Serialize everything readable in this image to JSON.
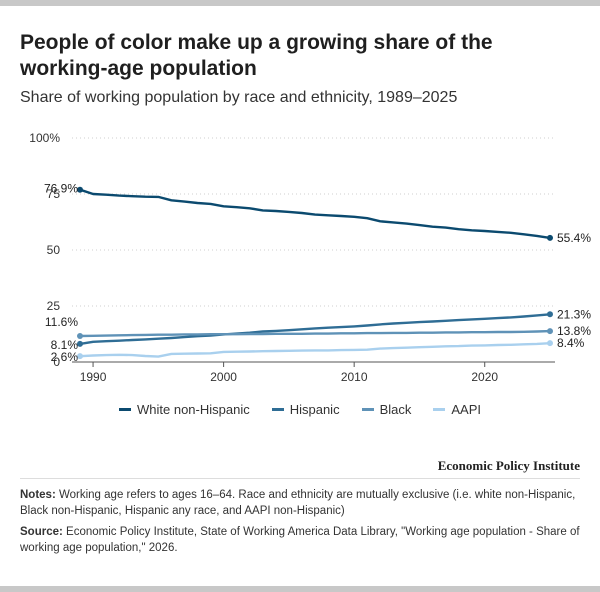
{
  "header": {
    "title": "People of color make up a growing share of the working-age population",
    "subtitle": "Share of working population by race and ethnicity, 1989–2025"
  },
  "chart_data": {
    "type": "line",
    "title": "People of color make up a growing share of the working-age population",
    "subtitle": "Share of working population by race and ethnicity, 1989–2025",
    "xlabel": "",
    "ylabel": "",
    "xlim": [
      1989,
      2025
    ],
    "ylim": [
      0,
      100
    ],
    "x_ticks": [
      "1990",
      "2000",
      "2010",
      "2020"
    ],
    "y_ticks": [
      "0",
      "25",
      "50",
      "75",
      "100%"
    ],
    "y_tick_values": [
      0,
      25,
      50,
      75,
      100
    ],
    "x_tick_values": [
      1990,
      2000,
      2010,
      2020
    ],
    "grid": true,
    "legend": "bottom",
    "x": [
      1989,
      1990,
      1991,
      1992,
      1993,
      1994,
      1995,
      1996,
      1997,
      1998,
      1999,
      2000,
      2001,
      2002,
      2003,
      2004,
      2005,
      2006,
      2007,
      2008,
      2009,
      2010,
      2011,
      2012,
      2013,
      2014,
      2015,
      2016,
      2017,
      2018,
      2019,
      2020,
      2021,
      2022,
      2023,
      2024,
      2025
    ],
    "series": [
      {
        "name": "White non-Hispanic",
        "color": "#0b4a6f",
        "start_label": "76.9%",
        "end_label": "55.4%",
        "values": [
          76.9,
          75.0,
          74.7,
          74.3,
          74.0,
          73.8,
          73.7,
          72.2,
          71.6,
          71.0,
          70.6,
          69.5,
          69.1,
          68.6,
          67.7,
          67.4,
          67.0,
          66.5,
          65.8,
          65.5,
          65.2,
          64.8,
          64.2,
          62.8,
          62.3,
          61.8,
          61.1,
          60.4,
          60.0,
          59.3,
          58.8,
          58.5,
          58.1,
          57.7,
          57.0,
          56.3,
          55.4
        ]
      },
      {
        "name": "Hispanic",
        "color": "#2f6d95",
        "start_label": "8.1%",
        "end_label": "21.3%",
        "values": [
          8.1,
          9.0,
          9.3,
          9.5,
          9.8,
          10.1,
          10.4,
          10.7,
          11.1,
          11.5,
          11.8,
          12.3,
          12.7,
          13.1,
          13.6,
          13.9,
          14.2,
          14.6,
          15.0,
          15.3,
          15.6,
          15.9,
          16.3,
          16.8,
          17.2,
          17.5,
          17.8,
          18.1,
          18.4,
          18.7,
          19.0,
          19.3,
          19.6,
          19.9,
          20.3,
          20.8,
          21.3
        ]
      },
      {
        "name": "Black",
        "color": "#5f92b7",
        "start_label": "11.6%",
        "end_label": "13.8%",
        "values": [
          11.6,
          11.7,
          11.8,
          11.9,
          12.0,
          12.1,
          12.2,
          12.2,
          12.3,
          12.3,
          12.4,
          12.4,
          12.4,
          12.5,
          12.5,
          12.6,
          12.6,
          12.6,
          12.7,
          12.7,
          12.8,
          12.8,
          12.9,
          12.9,
          13.0,
          13.0,
          13.1,
          13.1,
          13.2,
          13.2,
          13.3,
          13.3,
          13.4,
          13.4,
          13.5,
          13.6,
          13.8
        ]
      },
      {
        "name": "AAPI",
        "color": "#a9d0ee",
        "start_label": "2.6%",
        "end_label": "8.4%",
        "values": [
          2.6,
          2.9,
          3.1,
          3.2,
          3.1,
          2.7,
          2.4,
          3.6,
          3.7,
          3.8,
          3.9,
          4.5,
          4.6,
          4.7,
          4.8,
          4.9,
          5.0,
          5.1,
          5.2,
          5.2,
          5.3,
          5.4,
          5.5,
          6.0,
          6.2,
          6.4,
          6.6,
          6.8,
          7.0,
          7.1,
          7.3,
          7.4,
          7.6,
          7.7,
          7.9,
          8.1,
          8.4
        ]
      }
    ]
  },
  "footer": {
    "organization": "Economic Policy Institute",
    "notes_label": "Notes:",
    "notes_text": "Working age refers to ages 16–64. Race and ethnicity are mutually exclusive (i.e. white non-Hispanic, Black non-Hispanic, Hispanic any race, and AAPI non-Hispanic)",
    "source_label": "Source:",
    "source_text": "Economic Policy Institute, State of Working America Data Library, \"Working age population - Share of working age population,\" 2026."
  }
}
